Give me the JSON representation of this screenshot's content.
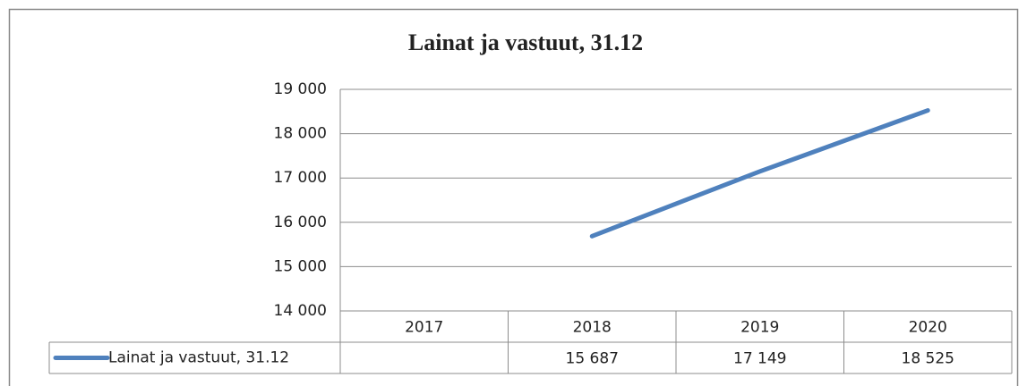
{
  "chart_data": {
    "type": "line",
    "title": "Lainat ja vastuut, 31.12",
    "categories": [
      "2017",
      "2018",
      "2019",
      "2020"
    ],
    "series": [
      {
        "name": "Lainat ja vastuut, 31.12",
        "color": "#4f81bd",
        "values": [
          null,
          15687,
          17149,
          18525
        ],
        "value_labels": [
          null,
          "15 687",
          "17 149",
          "18 525"
        ]
      }
    ],
    "ylim": [
      14000,
      19000
    ],
    "yticks": [
      {
        "value": 14000,
        "label": "14 000"
      },
      {
        "value": 15000,
        "label": "15 000"
      },
      {
        "value": 16000,
        "label": "16 000"
      },
      {
        "value": 17000,
        "label": "17 000"
      },
      {
        "value": 18000,
        "label": "18 000"
      },
      {
        "value": 19000,
        "label": "19 000"
      }
    ],
    "grid": true
  }
}
